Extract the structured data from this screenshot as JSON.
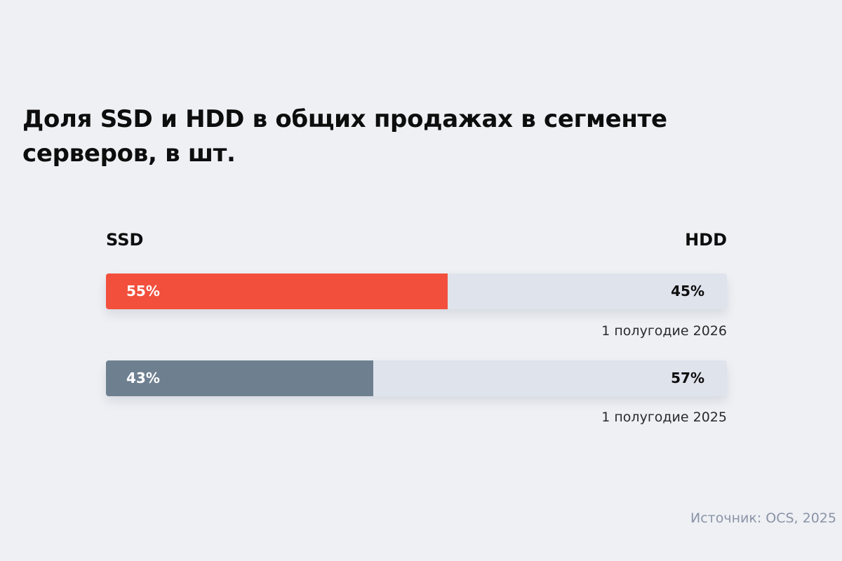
{
  "chart_data": {
    "type": "bar",
    "orientation": "horizontal",
    "stacked": true,
    "title": "Доля SSD и HDD в общих продажах в сегменте серверов, в шт.",
    "legend": [
      "SSD",
      "HDD"
    ],
    "categories": [
      "1 полугодие 2026",
      "1 полугодие 2025"
    ],
    "series": [
      {
        "name": "SSD",
        "values": [
          55,
          43
        ],
        "labels": [
          "55%",
          "43%"
        ]
      },
      {
        "name": "HDD",
        "values": [
          45,
          57
        ],
        "labels": [
          "45%",
          "57%"
        ]
      }
    ],
    "fill_colors": [
      "#f2503c",
      "#6e8090"
    ],
    "track_color": "#dfe3ec",
    "xlim": [
      0,
      100
    ],
    "grid": false,
    "source": "Источник: OCS, 2025"
  }
}
